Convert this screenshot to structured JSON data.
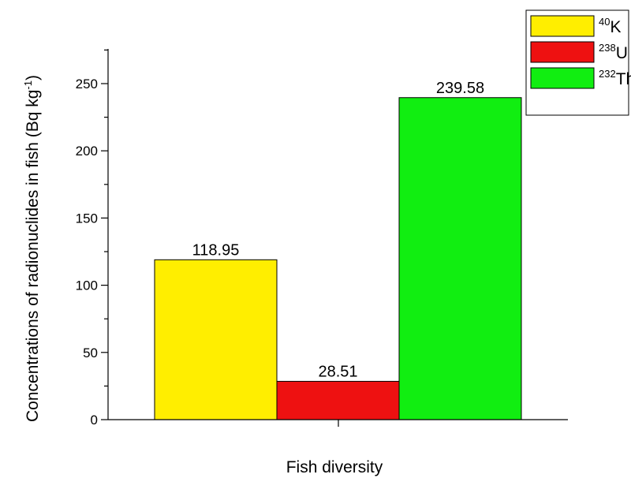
{
  "chart_data": {
    "type": "bar",
    "title": "",
    "xlabel": "Fish diversity",
    "ylabel": "Concentrations of radionuclides in fish (Bq kg",
    "ylabel_sup": "-1",
    "ylabel_close": ")",
    "ylim": [
      0,
      270
    ],
    "yticks": [
      0,
      50,
      100,
      150,
      200,
      250
    ],
    "legend_position": "top-right",
    "series": [
      {
        "mass": "40",
        "symbol": "K",
        "value": 118.95,
        "value_label": "118.95",
        "color": "#FFEE00"
      },
      {
        "mass": "238",
        "symbol": "U",
        "value": 28.51,
        "value_label": "28.51",
        "color": "#EE1111"
      },
      {
        "mass": "232",
        "symbol": "Th",
        "value": 239.58,
        "value_label": "239.58",
        "color": "#11EE11"
      }
    ]
  }
}
